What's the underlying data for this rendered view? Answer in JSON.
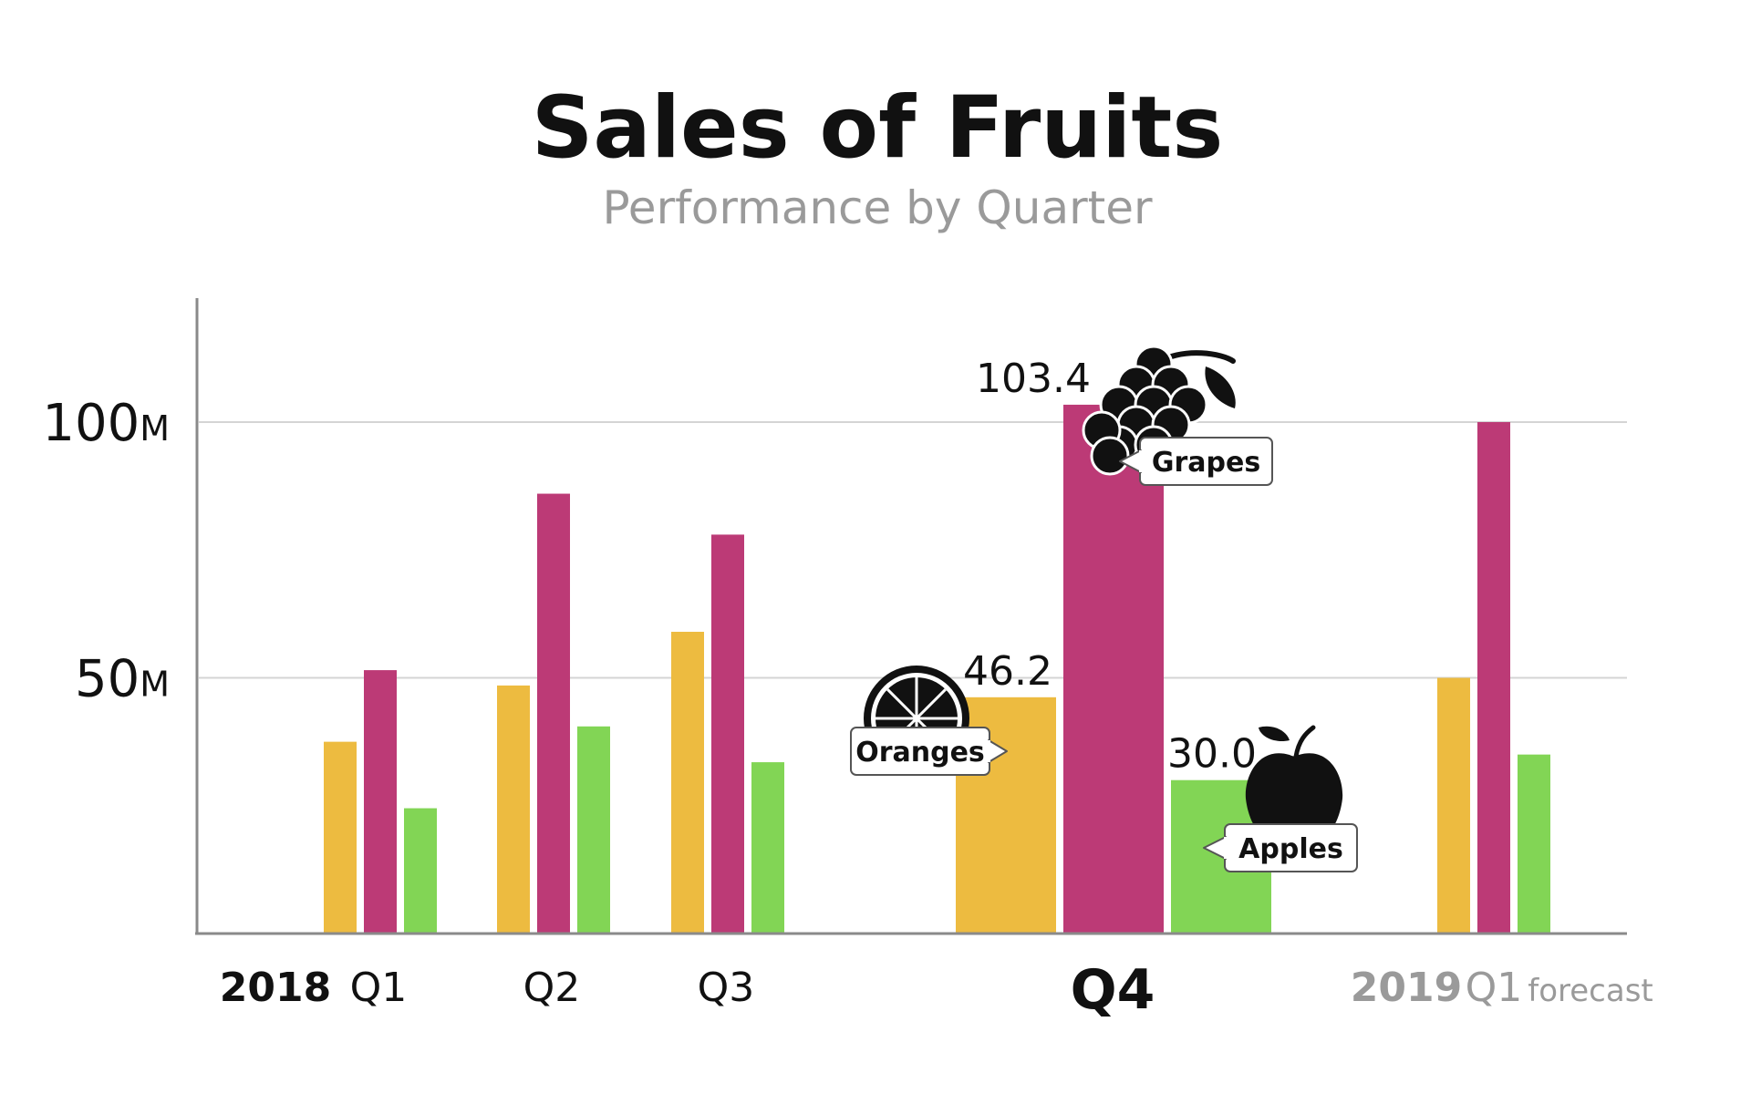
{
  "chart_data": {
    "type": "bar",
    "title": "Sales of Fruits",
    "subtitle": "Performance by Quarter",
    "yticks": [
      {
        "value": 50,
        "label": "50",
        "unit": "M"
      },
      {
        "value": 100,
        "label": "100",
        "unit": "M"
      }
    ],
    "ylim": [
      0,
      122
    ],
    "grid": true,
    "colors": {
      "Oranges": "#EDBB40",
      "Grapes": "#BC3A76",
      "Apples": "#82D555"
    },
    "categories": [
      "2018 Q1",
      "2018 Q2",
      "2018 Q3",
      "2018 Q4",
      "2019 Q1"
    ],
    "category_labels": [
      "Q1",
      "Q2",
      "Q3",
      "Q4",
      "Q1"
    ],
    "year_labels": {
      "2018": "2018",
      "2019": "2019"
    },
    "forecast_label": "forecast",
    "series": [
      {
        "name": "Oranges",
        "values": [
          37.5,
          48.5,
          59,
          46.2,
          50
        ]
      },
      {
        "name": "Grapes",
        "values": [
          51.5,
          86,
          78,
          103.4,
          100
        ]
      },
      {
        "name": "Apples",
        "values": [
          24.5,
          40.5,
          33.5,
          30.0,
          35
        ]
      }
    ],
    "highlight": {
      "category": "2018 Q4",
      "value_labels": {
        "Oranges": "46.2",
        "Grapes": "103.4",
        "Apples": "30.0"
      },
      "callouts": {
        "Oranges": "Oranges",
        "Grapes": "Grapes",
        "Apples": "Apples"
      },
      "icons": {
        "Oranges": "orange-slice-icon",
        "Grapes": "grapes-icon",
        "Apples": "apple-icon"
      }
    }
  }
}
